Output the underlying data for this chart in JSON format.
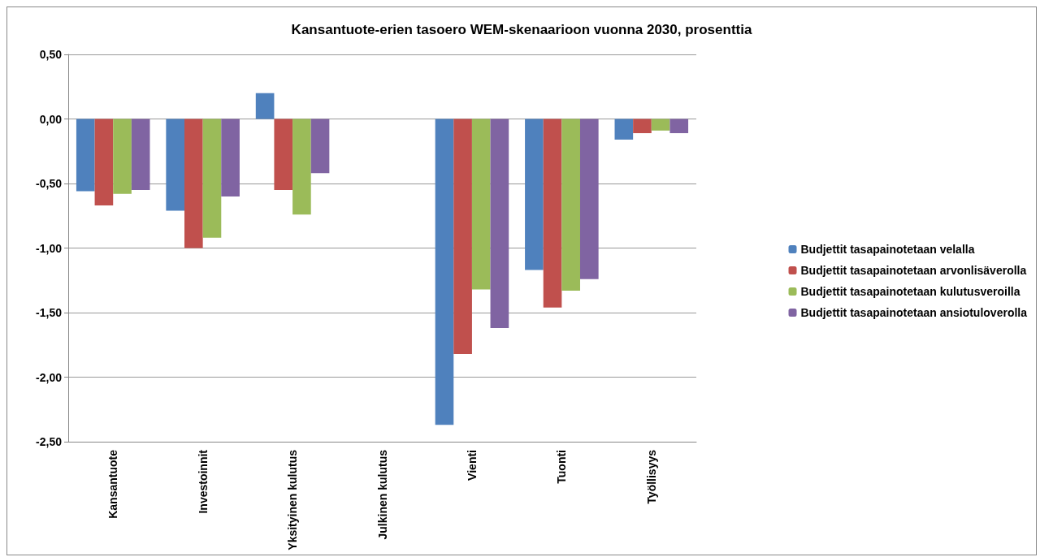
{
  "chart_data": {
    "type": "bar",
    "title": "Kansantuote-erien tasoero WEM-skenaarioon vuonna 2030, prosenttia",
    "categories": [
      "Kansantuote",
      "Investoinnit",
      "Yksityinen kulutus",
      "Julkinen kulutus",
      "Vienti",
      "Tuonti",
      "Työllisyys"
    ],
    "series": [
      {
        "name": "Budjettit tasapainotetaan velalla",
        "color": "#4f81bd",
        "values": [
          -0.56,
          -0.71,
          0.2,
          0,
          -2.37,
          -1.17,
          -0.16
        ]
      },
      {
        "name": "Budjettit tasapainotetaan arvonlisäverolla",
        "color": "#c0504d",
        "values": [
          -0.67,
          -1.0,
          -0.55,
          0,
          -1.82,
          -1.46,
          -0.11
        ]
      },
      {
        "name": "Budjettit tasapainotetaan kulutusveroilla",
        "color": "#9bbb59",
        "values": [
          -0.58,
          -0.92,
          -0.74,
          0,
          -1.32,
          -1.33,
          -0.09
        ]
      },
      {
        "name": "Budjettit tasapainotetaan ansiotuloverolla",
        "color": "#8064a2",
        "values": [
          -0.55,
          -0.6,
          -0.42,
          0,
          -1.62,
          -1.24,
          -0.11
        ]
      }
    ],
    "ylim": [
      -2.5,
      0.5
    ],
    "yticks": [
      {
        "value": -2.5,
        "label": "-2,50"
      },
      {
        "value": -2,
        "label": "-2,00"
      },
      {
        "value": -1.5,
        "label": "-1,50"
      },
      {
        "value": -1,
        "label": "-1,00"
      },
      {
        "value": -0.5,
        "label": "-0,50"
      },
      {
        "value": 0,
        "label": "0,00"
      },
      {
        "value": 0.5,
        "label": "0,50"
      }
    ],
    "grid": "y",
    "legend": "right"
  }
}
